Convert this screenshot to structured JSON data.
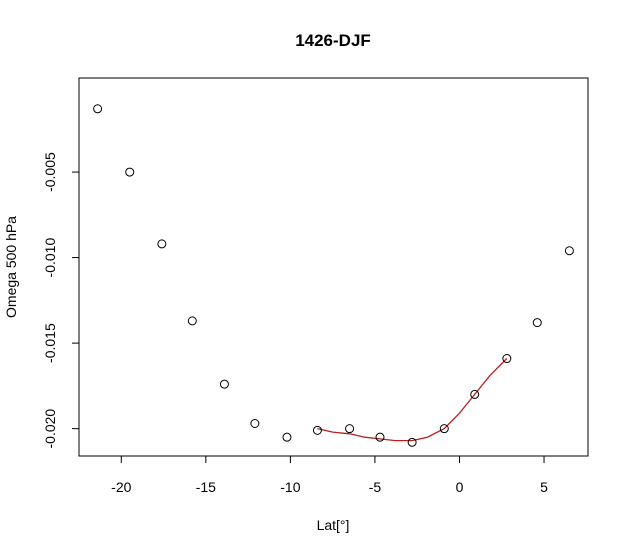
{
  "chart_data": {
    "type": "scatter",
    "title": "1426-DJF",
    "xlabel": "Lat[°]",
    "ylabel": "Omega 500 hPa",
    "xlim": [
      -22.5,
      7.6
    ],
    "ylim": [
      -0.0216,
      0.0005
    ],
    "x_ticks": [
      -20,
      -15,
      -10,
      -5,
      0,
      5
    ],
    "y_ticks": [
      -0.02,
      -0.015,
      -0.01,
      -0.005
    ],
    "x_tick_labels": [
      "-20",
      "-15",
      "-10",
      "-5",
      "0",
      "5"
    ],
    "y_tick_labels": [
      "-0.020",
      "-0.015",
      "-0.010",
      "-0.005"
    ],
    "grid": false,
    "series": [
      {
        "kind": "points",
        "marker": "open-circle",
        "color": "#000000",
        "x": [
          -21.4,
          -19.5,
          -17.6,
          -15.8,
          -13.9,
          -12.1,
          -10.2,
          -8.4,
          -6.5,
          -4.7,
          -2.8,
          -0.9,
          0.9,
          2.8,
          4.6,
          6.5
        ],
        "y": [
          -0.0013,
          -0.005,
          -0.0092,
          -0.0137,
          -0.0174,
          -0.0197,
          -0.0205,
          -0.0201,
          -0.02,
          -0.0205,
          -0.0208,
          -0.02,
          -0.018,
          -0.0159,
          -0.0138,
          -0.0096
        ]
      },
      {
        "kind": "line",
        "color": "#b22222",
        "x": [
          -8.4,
          -7.5,
          -6.5,
          -5.6,
          -4.7,
          -3.8,
          -2.8,
          -1.9,
          -0.9,
          0.0,
          0.9,
          1.8,
          2.8
        ],
        "y": [
          -0.02,
          -0.0202,
          -0.0203,
          -0.0205,
          -0.0206,
          -0.0207,
          -0.0207,
          -0.0205,
          -0.02,
          -0.0191,
          -0.018,
          -0.0169,
          -0.0159
        ]
      }
    ]
  }
}
